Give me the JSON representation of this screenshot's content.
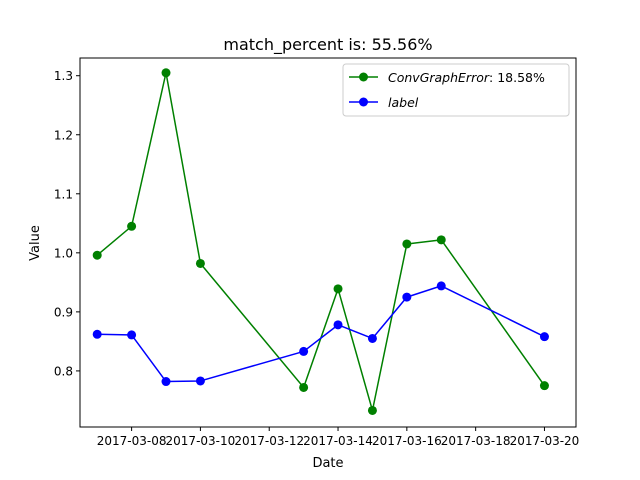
{
  "chart_data": {
    "type": "line",
    "title": "match_percent is: 55.56%",
    "xlabel": "Date",
    "ylabel": "Value",
    "x_dates": [
      "2017-03-07",
      "2017-03-08",
      "2017-03-09",
      "2017-03-10",
      "2017-03-13",
      "2017-03-14",
      "2017-03-15",
      "2017-03-16",
      "2017-03-17",
      "2017-03-20"
    ],
    "x_ticks": [
      "2017-03-08",
      "2017-03-10",
      "2017-03-12",
      "2017-03-14",
      "2017-03-16",
      "2017-03-18",
      "2017-03-20"
    ],
    "xlim": [
      "2017-03-06T12:00",
      "2017-03-20T22:00"
    ],
    "y_ticks": [
      0.8,
      0.9,
      1.0,
      1.1,
      1.2,
      1.3
    ],
    "y_tick_labels": [
      "0.8",
      "0.9",
      "1.0",
      "1.1",
      "1.2",
      "1.3"
    ],
    "ylim": [
      0.705,
      1.33
    ],
    "legend_position": "upper right",
    "series": [
      {
        "name": "ConvGraphError",
        "legend_suffix": ": 18.58%",
        "color": "#008000",
        "values": [
          0.996,
          1.045,
          1.305,
          0.982,
          0.772,
          0.939,
          0.733,
          1.015,
          1.022,
          0.775
        ]
      },
      {
        "name": "label",
        "legend_suffix": "",
        "color": "#0000ff",
        "values": [
          0.862,
          0.861,
          0.782,
          0.783,
          0.833,
          0.878,
          0.855,
          0.925,
          0.944,
          0.858
        ]
      }
    ]
  }
}
